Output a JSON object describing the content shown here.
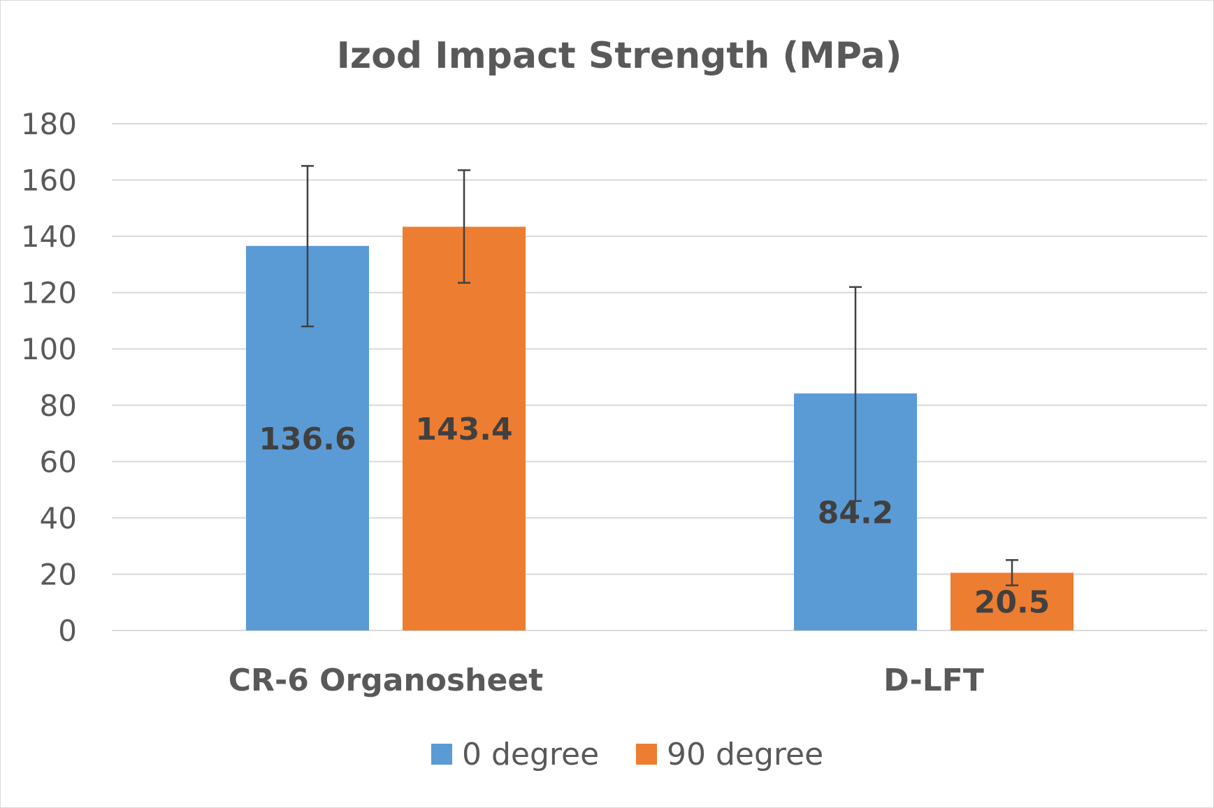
{
  "chart_data": {
    "type": "bar",
    "title": "Izod Impact Strength (MPa)",
    "categories": [
      "CR-6 Organosheet",
      "D-LFT"
    ],
    "series": [
      {
        "name": "0 degree",
        "color": "#5b9bd5",
        "values": [
          136.6,
          84.2
        ],
        "labels": [
          "136.6",
          "84.2"
        ],
        "error_low": [
          108,
          46
        ],
        "error_high": [
          165,
          122
        ]
      },
      {
        "name": "90 degree",
        "color": "#ed7d31",
        "values": [
          143.4,
          20.5
        ],
        "labels": [
          "143.4",
          "20.5"
        ],
        "error_low": [
          123.5,
          16
        ],
        "error_high": [
          163.5,
          25
        ]
      }
    ],
    "ylim": [
      0,
      180
    ],
    "yticks": [
      "0",
      "20",
      "40",
      "60",
      "80",
      "100",
      "120",
      "140",
      "160",
      "180"
    ],
    "xlabel": "",
    "ylabel": "",
    "grid": true,
    "legend_position": "bottom-center",
    "gridline_color": "#d9d9d9",
    "text_color": "#595959",
    "error_bar_color": "#404040"
  }
}
